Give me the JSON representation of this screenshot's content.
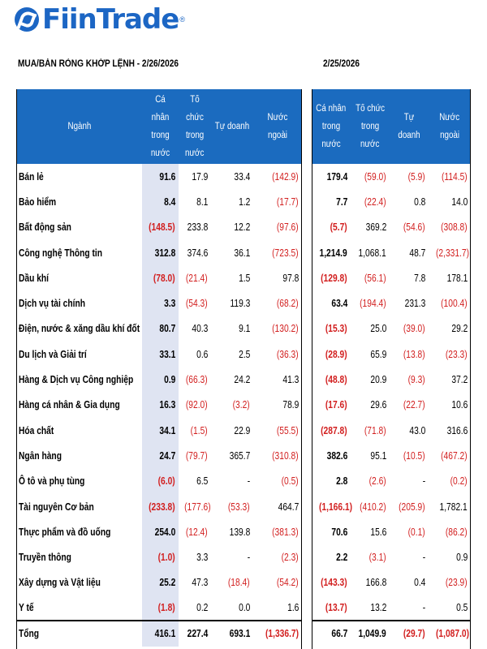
{
  "brand": {
    "name": "FiinTrade",
    "reg": "®"
  },
  "titles": {
    "left": "MUA/BÁN RÒNG KHỚP LỆNH - 2/26/2026",
    "right": "2/25/2026"
  },
  "headers": {
    "sector": "Ngành",
    "individual": [
      "Cá nhân",
      "trong nước"
    ],
    "institution": [
      "Tổ chức",
      "trong",
      "nước"
    ],
    "proprietary": "Tự doanh",
    "foreign": "Nước ngoài",
    "foreign_right": [
      "Nước",
      "ngoài"
    ]
  },
  "rows": [
    {
      "sector": "Bán lẻ",
      "d26": [
        "91.6",
        "17.9",
        "33.4",
        "(142.9)"
      ],
      "d25": [
        "179.4",
        "(59.0)",
        "(5.9)",
        "(114.5)"
      ]
    },
    {
      "sector": "Bảo hiểm",
      "d26": [
        "8.4",
        "8.1",
        "1.2",
        "(17.7)"
      ],
      "d25": [
        "7.7",
        "(22.4)",
        "0.8",
        "14.0"
      ]
    },
    {
      "sector": "Bất động sản",
      "d26": [
        "(148.5)",
        "233.8",
        "12.2",
        "(97.6)"
      ],
      "d25": [
        "(5.7)",
        "369.2",
        "(54.6)",
        "(308.8)"
      ]
    },
    {
      "sector": "Công nghệ Thông tin",
      "d26": [
        "312.8",
        "374.6",
        "36.1",
        "(723.5)"
      ],
      "d25": [
        "1,214.9",
        "1,068.1",
        "48.7",
        "(2,331.7)"
      ]
    },
    {
      "sector": "Dầu khí",
      "d26": [
        "(78.0)",
        "(21.4)",
        "1.5",
        "97.8"
      ],
      "d25": [
        "(129.8)",
        "(56.1)",
        "7.8",
        "178.1"
      ]
    },
    {
      "sector": "Dịch vụ tài chính",
      "d26": [
        "3.3",
        "(54.3)",
        "119.3",
        "(68.2)"
      ],
      "d25": [
        "63.4",
        "(194.4)",
        "231.3",
        "(100.4)"
      ]
    },
    {
      "sector": "Điện, nước & xăng dầu khí đốt",
      "d26": [
        "80.7",
        "40.3",
        "9.1",
        "(130.2)"
      ],
      "d25": [
        "(15.3)",
        "25.0",
        "(39.0)",
        "29.2"
      ]
    },
    {
      "sector": "Du lịch và Giải trí",
      "d26": [
        "33.1",
        "0.6",
        "2.5",
        "(36.3)"
      ],
      "d25": [
        "(28.9)",
        "65.9",
        "(13.8)",
        "(23.3)"
      ]
    },
    {
      "sector": "Hàng & Dịch vụ Công nghiệp",
      "d26": [
        "0.9",
        "(66.3)",
        "24.2",
        "41.3"
      ],
      "d25": [
        "(48.8)",
        "20.9",
        "(9.3)",
        "37.2"
      ]
    },
    {
      "sector": "Hàng cá nhân & Gia dụng",
      "d26": [
        "16.3",
        "(92.0)",
        "(3.2)",
        "78.9"
      ],
      "d25": [
        "(17.6)",
        "29.6",
        "(22.7)",
        "10.6"
      ]
    },
    {
      "sector": "Hóa chất",
      "d26": [
        "34.1",
        "(1.5)",
        "22.9",
        "(55.5)"
      ],
      "d25": [
        "(287.8)",
        "(71.8)",
        "43.0",
        "316.6"
      ]
    },
    {
      "sector": "Ngân hàng",
      "d26": [
        "24.7",
        "(79.7)",
        "365.7",
        "(310.8)"
      ],
      "d25": [
        "382.6",
        "95.1",
        "(10.5)",
        "(467.2)"
      ]
    },
    {
      "sector": "Ô tô và phụ tùng",
      "d26": [
        "(6.0)",
        "6.5",
        "-",
        "(0.5)"
      ],
      "d25": [
        "2.8",
        "(2.6)",
        "-",
        "(0.2)"
      ]
    },
    {
      "sector": "Tài nguyên Cơ bản",
      "d26": [
        "(233.8)",
        "(177.6)",
        "(53.3)",
        "464.7"
      ],
      "d25": [
        "(1,166.1)",
        "(410.2)",
        "(205.9)",
        "1,782.1"
      ]
    },
    {
      "sector": "Thực phẩm và đồ uống",
      "d26": [
        "254.0",
        "(12.4)",
        "139.8",
        "(381.3)"
      ],
      "d25": [
        "70.6",
        "15.6",
        "(0.1)",
        "(86.2)"
      ]
    },
    {
      "sector": "Truyền thông",
      "d26": [
        "(1.0)",
        "3.3",
        "-",
        "(2.3)"
      ],
      "d25": [
        "2.2",
        "(3.1)",
        "-",
        "0.9"
      ]
    },
    {
      "sector": "Xây dựng và Vật liệu",
      "d26": [
        "25.2",
        "47.3",
        "(18.4)",
        "(54.2)"
      ],
      "d25": [
        "(143.3)",
        "166.8",
        "0.4",
        "(23.9)"
      ]
    },
    {
      "sector": "Y tế",
      "d26": [
        "(1.8)",
        "0.2",
        "0.0",
        "1.6"
      ],
      "d25": [
        "(13.7)",
        "13.2",
        "-",
        "0.5"
      ]
    }
  ],
  "total": {
    "label": "Tổng",
    "d26": [
      "416.1",
      "227.4",
      "693.1",
      "(1,336.7)"
    ],
    "d25": [
      "66.7",
      "1,049.9",
      "(29.7)",
      "(1,087.0)"
    ]
  },
  "colors": {
    "header_bg": "#1b6bbf",
    "highlight_col": "#dfe4f2",
    "negative": "#d21f1f",
    "brand": "#1c66c4"
  }
}
